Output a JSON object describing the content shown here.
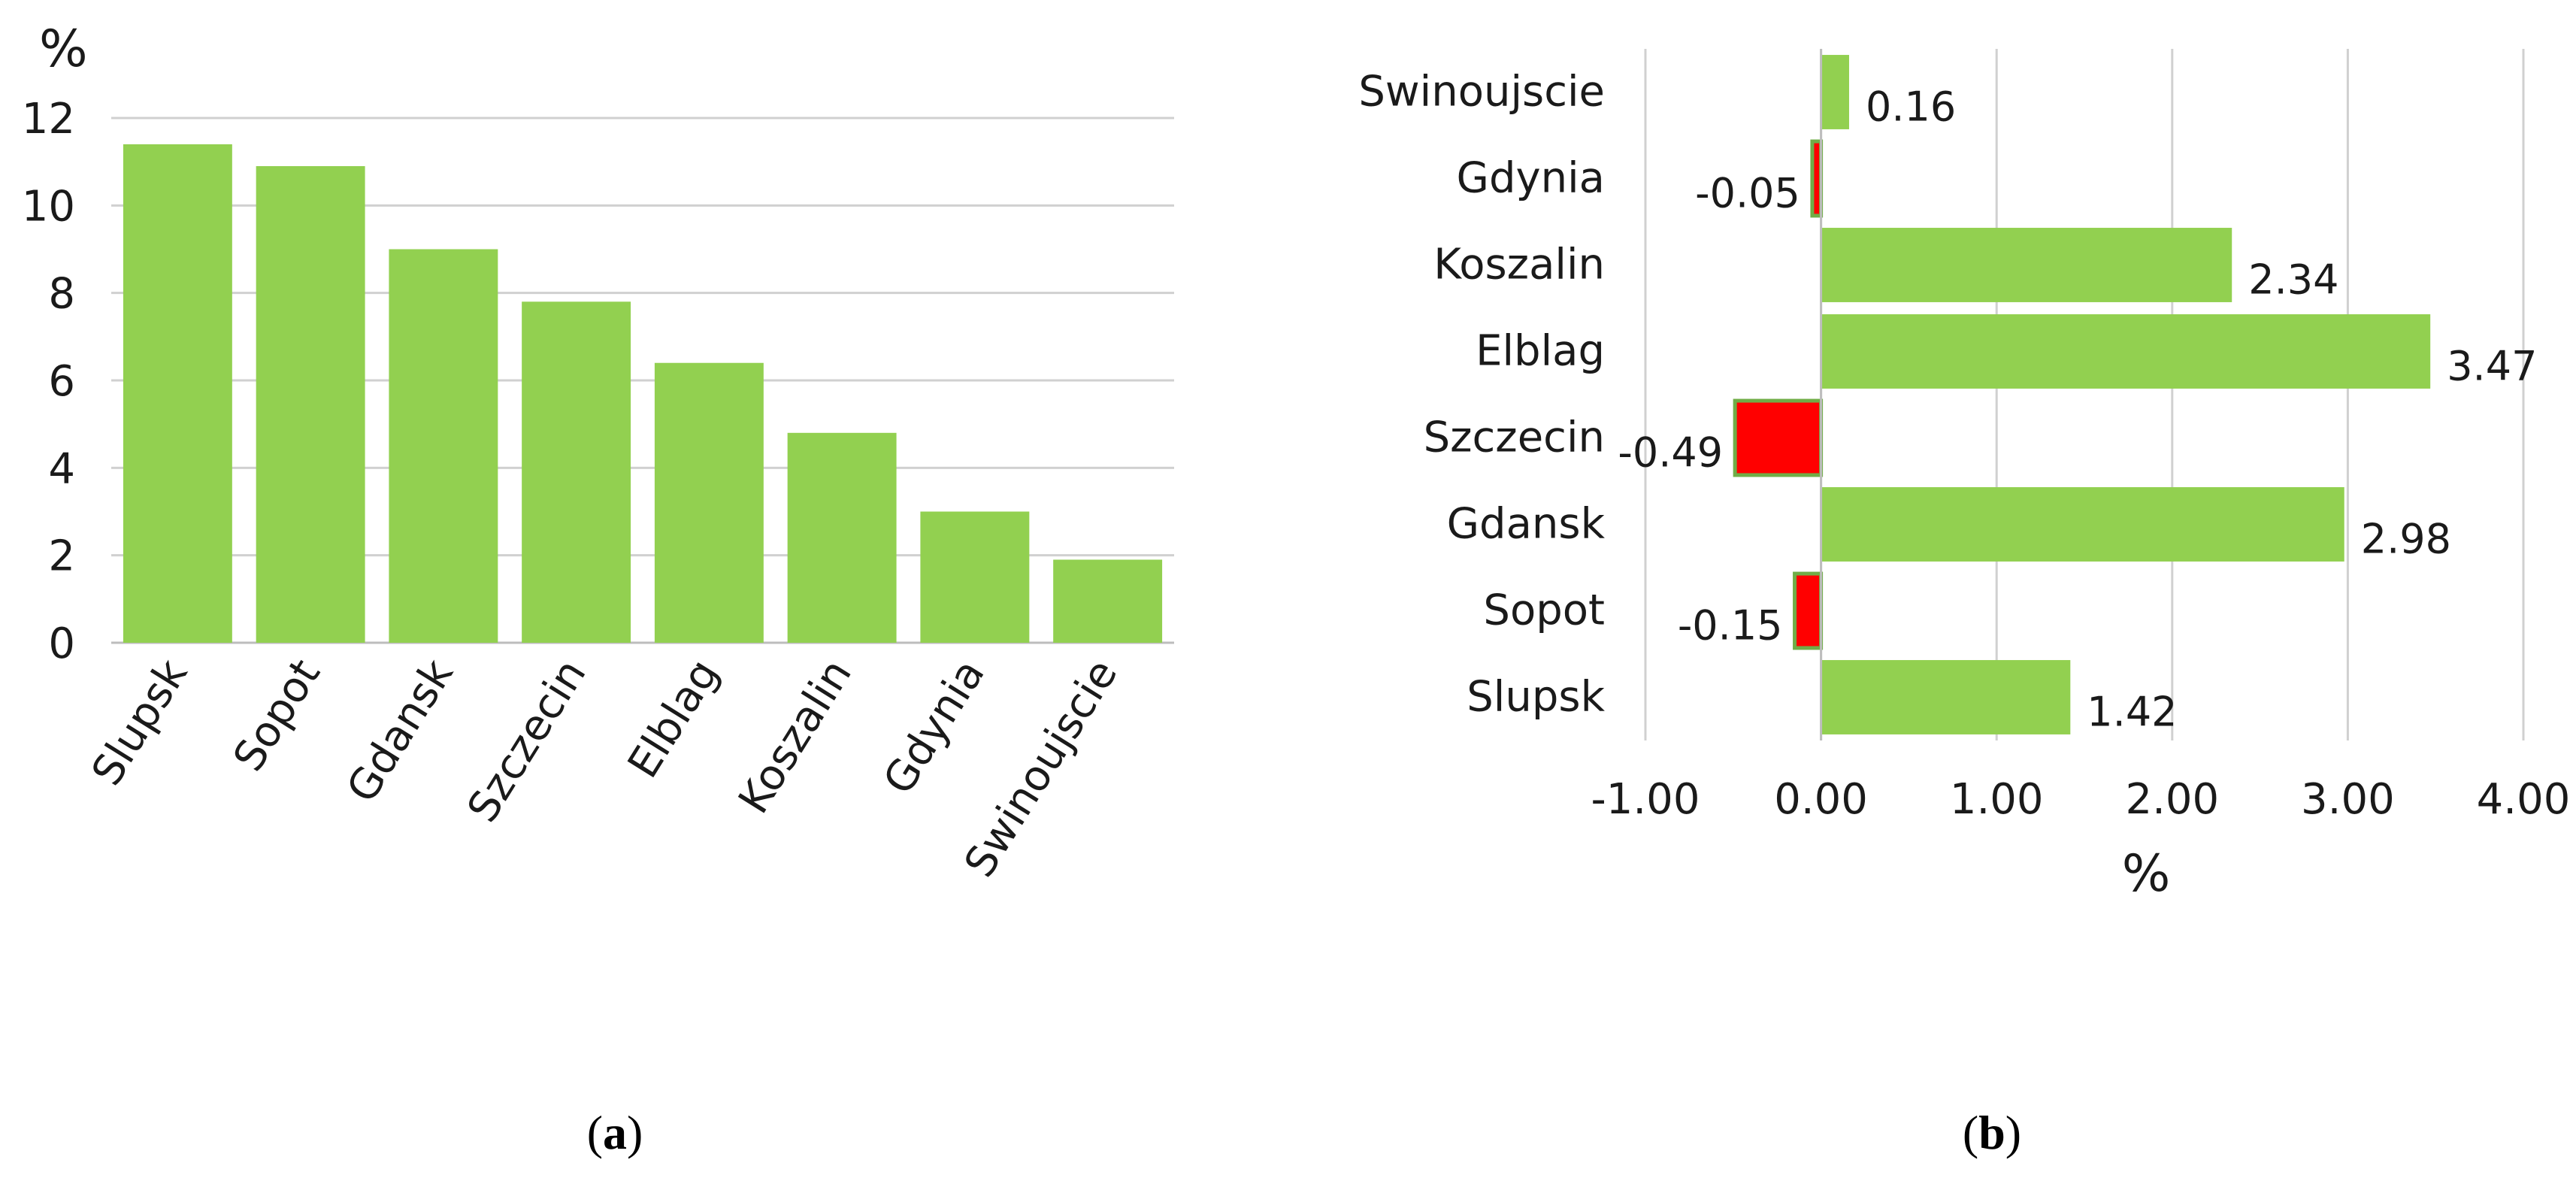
{
  "colors": {
    "positive": "#92d050",
    "negative": "#ff0000",
    "negative_border": "#70ad47"
  },
  "chart_data": [
    {
      "type": "bar",
      "orientation": "vertical",
      "panel_label": "a",
      "ylabel": "%",
      "ylim": [
        0,
        12
      ],
      "yticks": [
        "0",
        "2",
        "4",
        "6",
        "8",
        "10",
        "12"
      ],
      "grid": true,
      "categories": [
        "Slupsk",
        "Sopot",
        "Gdansk",
        "Szczecin",
        "Elblag",
        "Koszalin",
        "Gdynia",
        "Swinoujscie"
      ],
      "values": [
        11.4,
        10.9,
        9.0,
        7.8,
        6.4,
        4.8,
        3.0,
        1.9
      ]
    },
    {
      "type": "bar",
      "orientation": "horizontal",
      "panel_label": "b",
      "xlabel": "%",
      "xlim": [
        -1.0,
        4.0
      ],
      "xticks": [
        "-1.00",
        "0.00",
        "1.00",
        "2.00",
        "3.00",
        "4.00"
      ],
      "grid": true,
      "categories": [
        "Swinoujscie",
        "Gdynia",
        "Koszalin",
        "Elblag",
        "Szczecin",
        "Gdansk",
        "Sopot",
        "Slupsk"
      ],
      "values": [
        0.16,
        -0.05,
        2.34,
        3.47,
        -0.49,
        2.98,
        -0.15,
        1.42
      ],
      "value_labels": [
        "0.16",
        "-0.05",
        "2.34",
        "3.47",
        "-0.49",
        "2.98",
        "-0.15",
        "1.42"
      ]
    }
  ]
}
